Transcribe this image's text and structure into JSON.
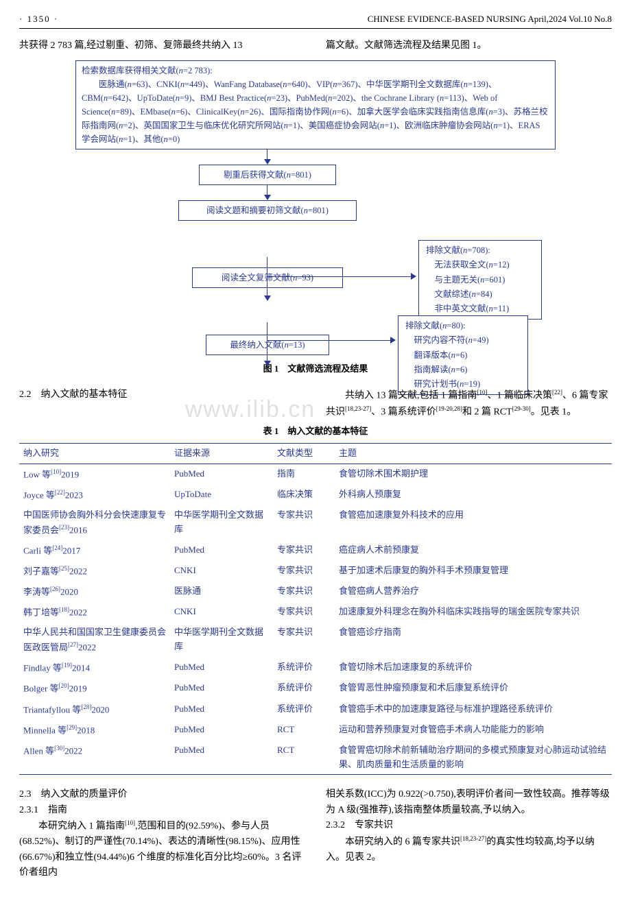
{
  "header": {
    "page_no": "· 1350 ·",
    "journal": "CHINESE EVIDENCE-BASED NURSING April,2024 Vol.10 No.8"
  },
  "intro": {
    "left": "共获得 2 783 篇,经过剔重、初筛、复筛最终共纳入 13",
    "right": "篇文献。文献筛选流程及结果见图 1。"
  },
  "flowchart": {
    "box1_lines": [
      "检索数据库获得相关文献(n=2 783):",
      "　　医脉通(n=63)、CNKI(n=449)、WanFang Database(n=640)、VIP(n=367)、中华医学期刊全文数据库(n=139)、CBM(n=642)、UpToDate(n=9)、BMJ Best Practice(n=23)、PubMed(n=202)、the Cochrane Library (n=113)、Web of Science(n=89)、EMbase(n=6)、ClinicalKey(n=26)、国际指南协作网(n=6)、加拿大医学会临床实践指南信息库(n=3)、苏格兰校际指南网(n=2)、英国国家卫生与临床优化研究所网站(n=1)、美国癌症协会网站(n=1)、欧洲临床肿瘤协会网站(n=1)、ERAS 学会网站(n=1)、其他(n=0)"
    ],
    "box2": "剔重后获得文献(n=801)",
    "box3": "阅读文题和摘要初筛文献(n=801)",
    "box4": "阅读全文复筛文献(n=93)",
    "box5": "最终纳入文献(n=13)",
    "side1_lines": [
      "排除文献(n=708):",
      "　无法获取全文(n=12)",
      "　与主题无关(n=601)",
      "　文献综述(n=84)",
      "　非中英文文献(n=11)"
    ],
    "side2_lines": [
      "排除文献(n=80):",
      "　研究内容不符(n=49)",
      "　翻译版本(n=6)",
      "　指南解读(n=6)",
      "　研究计划书(n=19)"
    ],
    "caption": "图 1　文献筛选流程及结果"
  },
  "sec22": {
    "head": "2.2　纳入文献的基本特征",
    "body": "　　共纳入 13 篇文献,包括 1 篇指南[10]、1 篇临床决策[22]、6 篇专家共识[18,23-27]、3 篇系统评价[19-20,28]和 2 篇 RCT[29-30]。见表 1。"
  },
  "table1": {
    "caption": "表 1　纳入文献的基本特征",
    "headers": [
      "纳入研究",
      "证据来源",
      "文献类型",
      "主题"
    ],
    "rows": [
      {
        "c1": "Low 等[10]2019",
        "c2": "PubMed",
        "c3": "指南",
        "c4": "食管切除术围术期护理"
      },
      {
        "c1": "Joyce 等[22]2023",
        "c2": "UpToDate",
        "c3": "临床决策",
        "c4": "外科病人预康复"
      },
      {
        "c1": "中国医师协会胸外科分会快速康复专家委员会[23]2016",
        "c2": "中华医学期刊全文数据库",
        "c3": "专家共识",
        "c4": "食管癌加速康复外科技术的应用"
      },
      {
        "c1": "Carli 等[24]2017",
        "c2": "PubMed",
        "c3": "专家共识",
        "c4": "癌症病人术前预康复"
      },
      {
        "c1": "刘子嘉等[25]2022",
        "c2": "CNKI",
        "c3": "专家共识",
        "c4": "基于加速术后康复的胸外科手术预康复管理"
      },
      {
        "c1": "李涛等[26]2020",
        "c2": "医脉通",
        "c3": "专家共识",
        "c4": "食管癌病人营养治疗"
      },
      {
        "c1": "韩丁培等[18]2022",
        "c2": "CNKI",
        "c3": "专家共识",
        "c4": "加速康复外科理念在胸外科临床实践指导的瑞金医院专家共识"
      },
      {
        "c1": "中华人民共和国国家卫生健康委员会医政医管局[27]2022",
        "c2": "中华医学期刊全文数据库",
        "c3": "专家共识",
        "c4": "食管癌诊疗指南"
      },
      {
        "c1": "Findlay 等[19]2014",
        "c2": "PubMed",
        "c3": "系统评价",
        "c4": "食管切除术后加速康复的系统评价"
      },
      {
        "c1": "Bolger 等[20]2019",
        "c2": "PubMed",
        "c3": "系统评价",
        "c4": "食管胃恶性肿瘤预康复和术后康复系统评价"
      },
      {
        "c1": "Triantafyllou 等[28]2020",
        "c2": "PubMed",
        "c3": "系统评价",
        "c4": "食管癌手术中的加速康复路径与标准护理路径系统评价"
      },
      {
        "c1": "Minnella 等[29]2018",
        "c2": "PubMed",
        "c3": "RCT",
        "c4": "运动和营养预康复对食管癌手术病人功能能力的影响"
      },
      {
        "c1": "Allen 等[30]2022",
        "c2": "PubMed",
        "c3": "RCT",
        "c4": "食管胃癌切除术前新辅助治疗期间的多模式预康复对心肺运动试验结果、肌肉质量和生活质量的影响"
      }
    ]
  },
  "sec23": {
    "head": "2.3　纳入文献的质量评价",
    "sub1_head": "2.3.1　指南",
    "sub1_body_left": "　　本研究纳入 1 篇指南[10],范围和目的(92.59%)、参与人员(68.52%)、制订的严谨性(70.14%)、表达的清晰性(98.15%)、应用性(66.67%)和独立性(94.44%)6 个维度的标准化百分比均≥60%。3 名评价者组内",
    "sub1_body_right": "相关系数(ICC)为 0.922(>0.750),表明评价者间一致性较高。推荐等级为 A 级(强推荐),该指南整体质量较高,予以纳入。",
    "sub2_head": "2.3.2　专家共识",
    "sub2_body": "　　本研究纳入的 6 篇专家共识[18,23-27]的真实性均较高,均予以纳入。见表 2。"
  },
  "watermark": "www.ilib.cn",
  "colors": {
    "accent": "#2b3a8f"
  }
}
